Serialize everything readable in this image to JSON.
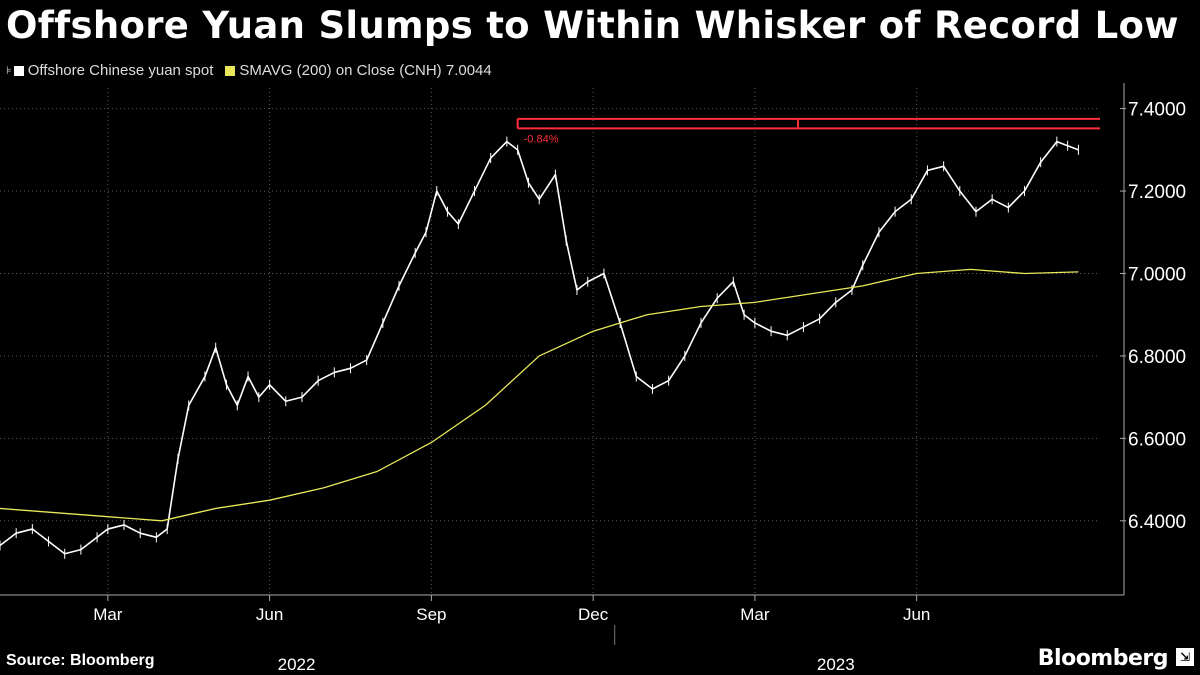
{
  "title": "Offshore Yuan Slumps to Within Whisker of Record Low",
  "legend": {
    "series1": "Offshore Chinese yuan spot",
    "series2": "SMAVG (200)  on Close (CNH) 7.0044"
  },
  "source": "Source: Bloomberg",
  "brand": "Bloomberg",
  "colors": {
    "price": "#ffffff",
    "sma": "#e8e85a",
    "band": "#ff2d3a",
    "grid": "#5a5a5a"
  },
  "chart_data": {
    "type": "line",
    "title": "Offshore Yuan Slumps to Within Whisker of Record Low",
    "ylim": [
      6.22,
      7.45
    ],
    "yticks": [
      6.4,
      6.6,
      6.8,
      7.0,
      7.2,
      7.4
    ],
    "ytick_labels": [
      "6.4000",
      "6.6000",
      "6.8000",
      "7.0000",
      "7.2000",
      "7.4000"
    ],
    "x_month_range": [
      0,
      20.4
    ],
    "xticks": [
      {
        "label": "Mar",
        "pos": 2.0
      },
      {
        "label": "Jun",
        "pos": 5.0
      },
      {
        "label": "Sep",
        "pos": 8.0
      },
      {
        "label": "Dec",
        "pos": 11.0
      },
      {
        "label": "Mar",
        "pos": 14.0
      },
      {
        "label": "Jun",
        "pos": 17.0
      }
    ],
    "year_labels": [
      {
        "label": "2022",
        "pos": 5.5
      },
      {
        "label": "2023",
        "pos": 15.5
      }
    ],
    "year_divider": 11.4,
    "annotation": {
      "label": "-0.84%",
      "x_start": 9.6,
      "x_end": 20.4,
      "y_upper": 7.375,
      "y_lower": 7.352,
      "marker_x": 14.8
    },
    "series": [
      {
        "name": "Offshore Chinese yuan spot",
        "x": [
          0,
          0.3,
          0.6,
          0.9,
          1.2,
          1.5,
          1.8,
          2.0,
          2.3,
          2.6,
          2.9,
          3.1,
          3.3,
          3.5,
          3.8,
          4.0,
          4.2,
          4.4,
          4.6,
          4.8,
          5.0,
          5.3,
          5.6,
          5.9,
          6.2,
          6.5,
          6.8,
          7.1,
          7.4,
          7.7,
          7.9,
          8.1,
          8.3,
          8.5,
          8.8,
          9.1,
          9.4,
          9.6,
          9.8,
          10.0,
          10.3,
          10.5,
          10.7,
          10.9,
          11.2,
          11.5,
          11.8,
          12.1,
          12.4,
          12.7,
          13.0,
          13.3,
          13.6,
          13.8,
          14.0,
          14.3,
          14.6,
          14.9,
          15.2,
          15.5,
          15.8,
          16.0,
          16.3,
          16.6,
          16.9,
          17.2,
          17.5,
          17.8,
          18.1,
          18.4,
          18.7,
          19.0,
          19.3,
          19.6,
          19.8,
          20.0
        ],
        "values": [
          6.34,
          6.37,
          6.38,
          6.35,
          6.32,
          6.33,
          6.36,
          6.38,
          6.39,
          6.37,
          6.36,
          6.38,
          6.55,
          6.68,
          6.75,
          6.82,
          6.73,
          6.68,
          6.75,
          6.7,
          6.73,
          6.69,
          6.7,
          6.74,
          6.76,
          6.77,
          6.79,
          6.88,
          6.97,
          7.05,
          7.1,
          7.2,
          7.15,
          7.12,
          7.2,
          7.28,
          7.32,
          7.3,
          7.22,
          7.18,
          7.24,
          7.08,
          6.96,
          6.98,
          7.0,
          6.88,
          6.75,
          6.72,
          6.74,
          6.8,
          6.88,
          6.94,
          6.98,
          6.9,
          6.88,
          6.86,
          6.85,
          6.87,
          6.89,
          6.93,
          6.96,
          7.02,
          7.1,
          7.15,
          7.18,
          7.25,
          7.26,
          7.2,
          7.15,
          7.18,
          7.16,
          7.2,
          7.27,
          7.32,
          7.31,
          7.3
        ]
      },
      {
        "name": "SMAVG (200)",
        "x": [
          0,
          1,
          2,
          3,
          4,
          5,
          6,
          7,
          8,
          9,
          10,
          11,
          12,
          13,
          14,
          15,
          16,
          17,
          18,
          19,
          20
        ],
        "values": [
          6.43,
          6.42,
          6.41,
          6.4,
          6.43,
          6.45,
          6.48,
          6.52,
          6.59,
          6.68,
          6.8,
          6.86,
          6.9,
          6.92,
          6.93,
          6.95,
          6.97,
          7.0,
          7.01,
          7.0,
          7.004
        ]
      }
    ]
  }
}
